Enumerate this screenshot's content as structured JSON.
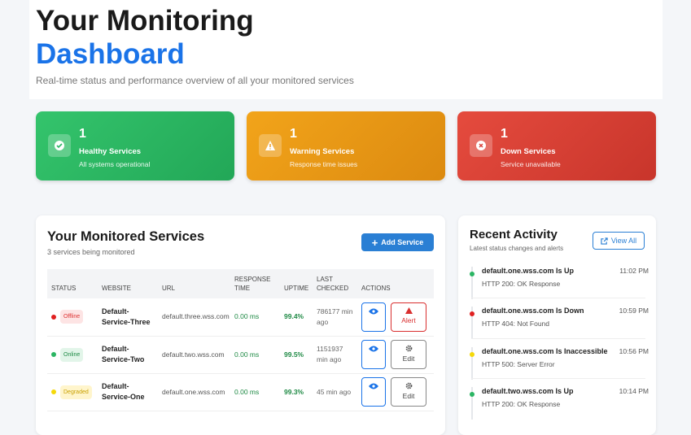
{
  "header": {
    "title_line1": "Your Monitoring",
    "title_line2": "Dashboard",
    "subtitle": "Real-time status and performance overview of all your monitored services"
  },
  "summary_cards": [
    {
      "count": 1,
      "label": "Healthy Services",
      "note": "All systems operational"
    },
    {
      "count": 1,
      "label": "Warning Services",
      "note": "Response time issues"
    },
    {
      "count": 1,
      "label": "Down Services",
      "note": "Service unavailable"
    }
  ],
  "services": {
    "title": "Your Monitored Services",
    "subtitle": "3 services being monitored",
    "add_button": "Add Service",
    "columns": [
      "STATUS",
      "WEBSITE",
      "URL",
      "RESPONSE TIME",
      "UPTIME",
      "LAST CHECKED",
      "ACTIONS"
    ],
    "rows": [
      {
        "status": "Offline",
        "website": "Default-Service-Three",
        "url": "default.three.wss.com",
        "response_time": "0.00 ms",
        "uptime": "99.4%",
        "last_checked": "786177 min ago",
        "action": "Alert"
      },
      {
        "status": "Online",
        "website": "Default-Service-Two",
        "url": "default.two.wss.com",
        "response_time": "0.00 ms",
        "uptime": "99.5%",
        "last_checked": "1151937 min ago",
        "action": "Edit"
      },
      {
        "status": "Degraded",
        "website": "Default-Service-One",
        "url": "default.one.wss.com",
        "response_time": "0.00 ms",
        "uptime": "99.3%",
        "last_checked": "45 min ago",
        "action": "Edit"
      }
    ]
  },
  "activity": {
    "title": "Recent Activity",
    "subtitle": "Latest status changes and alerts",
    "view_all": "View All",
    "items": [
      {
        "title": "default.one.wss.com Is Up",
        "detail": "HTTP 200: OK Response",
        "time": "11:02 PM"
      },
      {
        "title": "default.one.wss.com Is Down",
        "detail": "HTTP 404: Not Found",
        "time": "10:59 PM"
      },
      {
        "title": "default.one.wss.com Is Inaccessible",
        "detail": "HTTP 500: Server Error",
        "time": "10:56 PM"
      },
      {
        "title": "default.two.wss.com Is Up",
        "detail": "HTTP 200: OK Response",
        "time": "10:14 PM"
      }
    ]
  }
}
